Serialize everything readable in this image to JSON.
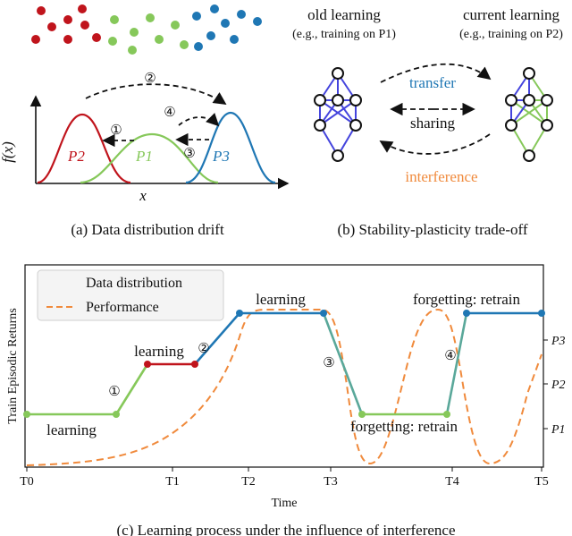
{
  "panel_a": {
    "ylabel": "f(x)",
    "xlabel": "x",
    "p2": "P2",
    "p1": "P1",
    "p3": "P3",
    "n1": "①",
    "n2": "②",
    "n3": "③",
    "n4": "④",
    "caption": "(a) Data distribution drift",
    "colors": {
      "p2": "#c0141c",
      "p1": "#86c85a",
      "p3": "#1f77b4"
    }
  },
  "panel_b": {
    "old_title": "old learning",
    "old_sub": "(e.g., training on P1)",
    "cur_title": "current learning",
    "cur_sub": "(e.g., training on P2)",
    "transfer": "transfer",
    "sharing": "sharing",
    "interference": "interference",
    "caption": "(b) Stability-plasticity trade-off",
    "colors": {
      "transfer": "#1f77b4",
      "interference": "#f08a3c",
      "net_blue": "#4444dd",
      "net_green": "#86c85a"
    }
  },
  "panel_c": {
    "ylabel": "Train Episodic Returns",
    "xlabel": "Time",
    "legend_dist": "Data distribution",
    "legend_perf": "Performance",
    "annotations": {
      "learning_1": "learning",
      "learning_2": "learning",
      "learning_3": "learning",
      "forget_1": "forgetting: retrain",
      "forget_2": "forgetting: retrain"
    },
    "markers": {
      "m1": "①",
      "m2": "②",
      "m3": "③",
      "m4": "④"
    },
    "caption": "(c) Learning process under the influence of interference"
  },
  "chart_data": {
    "type": "line",
    "xlabel": "Time",
    "ylabel": "Train Episodic Returns",
    "x_ticks": [
      "T0",
      "T1",
      "T2",
      "T3",
      "T4",
      "T5"
    ],
    "y_ticks": [
      "P1",
      "P2",
      "P3"
    ],
    "series": [
      {
        "name": "Data distribution",
        "x": [
          0,
          0.65,
          1.05,
          1.35,
          1.6,
          2.25,
          2.45,
          3.35,
          3.7,
          4.2,
          4.4,
          4.9
        ],
        "y": [
          "P1",
          "P1",
          "P2+",
          "P2+",
          "top",
          "top",
          "top",
          "P1",
          "P1",
          "P1",
          "top",
          "top"
        ]
      },
      {
        "name": "Performance",
        "description_points": "low from T0, rises toward T2, high until ~T3, dips to near zero between T3 and T4, high around T4 peak, dips again, rises toward T5"
      }
    ]
  }
}
